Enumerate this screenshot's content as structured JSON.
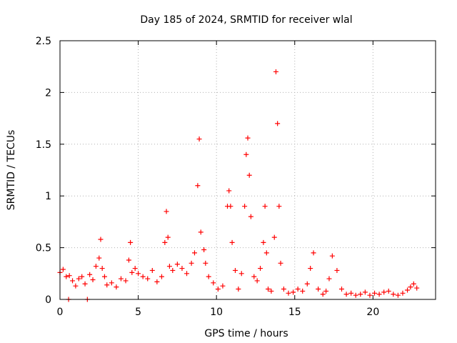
{
  "chart_data": {
    "type": "scatter",
    "title": "Day 185 of 2024, SRMTID for receiver wlal",
    "xlabel": "GPS time / hours",
    "ylabel": "SRMTID / TECUs",
    "xlim": [
      0,
      24
    ],
    "ylim": [
      0,
      2.5
    ],
    "x_ticks": [
      0,
      5,
      10,
      15,
      20
    ],
    "x_tick_labels": [
      "0",
      "5",
      "10",
      "15",
      "20"
    ],
    "y_ticks": [
      0,
      0.5,
      1,
      1.5,
      2,
      2.5
    ],
    "y_tick_labels": [
      "0",
      "0.5",
      "1",
      "1.5",
      "2",
      "2.5"
    ],
    "grid": true,
    "marker": "plus",
    "series": [
      {
        "name": "SRMTID",
        "color": "#ff0000",
        "x": [
          0.0,
          0.2,
          0.4,
          0.55,
          0.6,
          0.8,
          1.0,
          1.2,
          1.4,
          1.6,
          1.75,
          1.9,
          2.1,
          2.3,
          2.5,
          2.6,
          2.7,
          2.85,
          3.0,
          3.3,
          3.6,
          3.9,
          4.2,
          4.4,
          4.5,
          4.6,
          4.8,
          5.0,
          5.3,
          5.6,
          5.9,
          6.2,
          6.5,
          6.7,
          6.8,
          6.9,
          7.0,
          7.2,
          7.5,
          7.8,
          8.1,
          8.4,
          8.6,
          8.8,
          8.9,
          9.0,
          9.2,
          9.3,
          9.5,
          9.8,
          10.1,
          10.4,
          10.7,
          10.8,
          10.9,
          11.0,
          11.2,
          11.4,
          11.6,
          11.8,
          11.9,
          12.0,
          12.1,
          12.2,
          12.4,
          12.6,
          12.8,
          13.0,
          13.1,
          13.2,
          13.3,
          13.5,
          13.7,
          13.8,
          13.9,
          14.0,
          14.1,
          14.3,
          14.6,
          14.9,
          15.2,
          15.5,
          15.8,
          16.0,
          16.2,
          16.5,
          16.8,
          17.0,
          17.2,
          17.4,
          17.7,
          18.0,
          18.3,
          18.6,
          18.9,
          19.2,
          19.5,
          19.8,
          20.1,
          20.4,
          20.7,
          21.0,
          21.3,
          21.6,
          21.9,
          22.2,
          22.4,
          22.6,
          22.8
        ],
        "y": [
          0.26,
          0.29,
          0.22,
          0.0,
          0.23,
          0.18,
          0.13,
          0.2,
          0.22,
          0.15,
          0.0,
          0.24,
          0.19,
          0.32,
          0.4,
          0.58,
          0.3,
          0.22,
          0.14,
          0.16,
          0.12,
          0.2,
          0.18,
          0.38,
          0.55,
          0.26,
          0.3,
          0.25,
          0.22,
          0.2,
          0.28,
          0.17,
          0.22,
          0.55,
          0.85,
          0.6,
          0.32,
          0.28,
          0.34,
          0.3,
          0.25,
          0.35,
          0.45,
          1.1,
          1.55,
          0.65,
          0.48,
          0.35,
          0.22,
          0.16,
          0.1,
          0.13,
          0.9,
          1.05,
          0.9,
          0.55,
          0.28,
          0.1,
          0.25,
          0.9,
          1.4,
          1.56,
          1.2,
          0.8,
          0.22,
          0.18,
          0.3,
          0.55,
          0.9,
          0.45,
          0.1,
          0.08,
          0.6,
          2.2,
          1.7,
          0.9,
          0.35,
          0.1,
          0.06,
          0.07,
          0.1,
          0.08,
          0.15,
          0.3,
          0.45,
          0.1,
          0.05,
          0.08,
          0.2,
          0.42,
          0.28,
          0.1,
          0.05,
          0.06,
          0.04,
          0.05,
          0.07,
          0.04,
          0.06,
          0.05,
          0.07,
          0.08,
          0.05,
          0.04,
          0.06,
          0.09,
          0.12,
          0.15,
          0.11
        ]
      }
    ]
  }
}
